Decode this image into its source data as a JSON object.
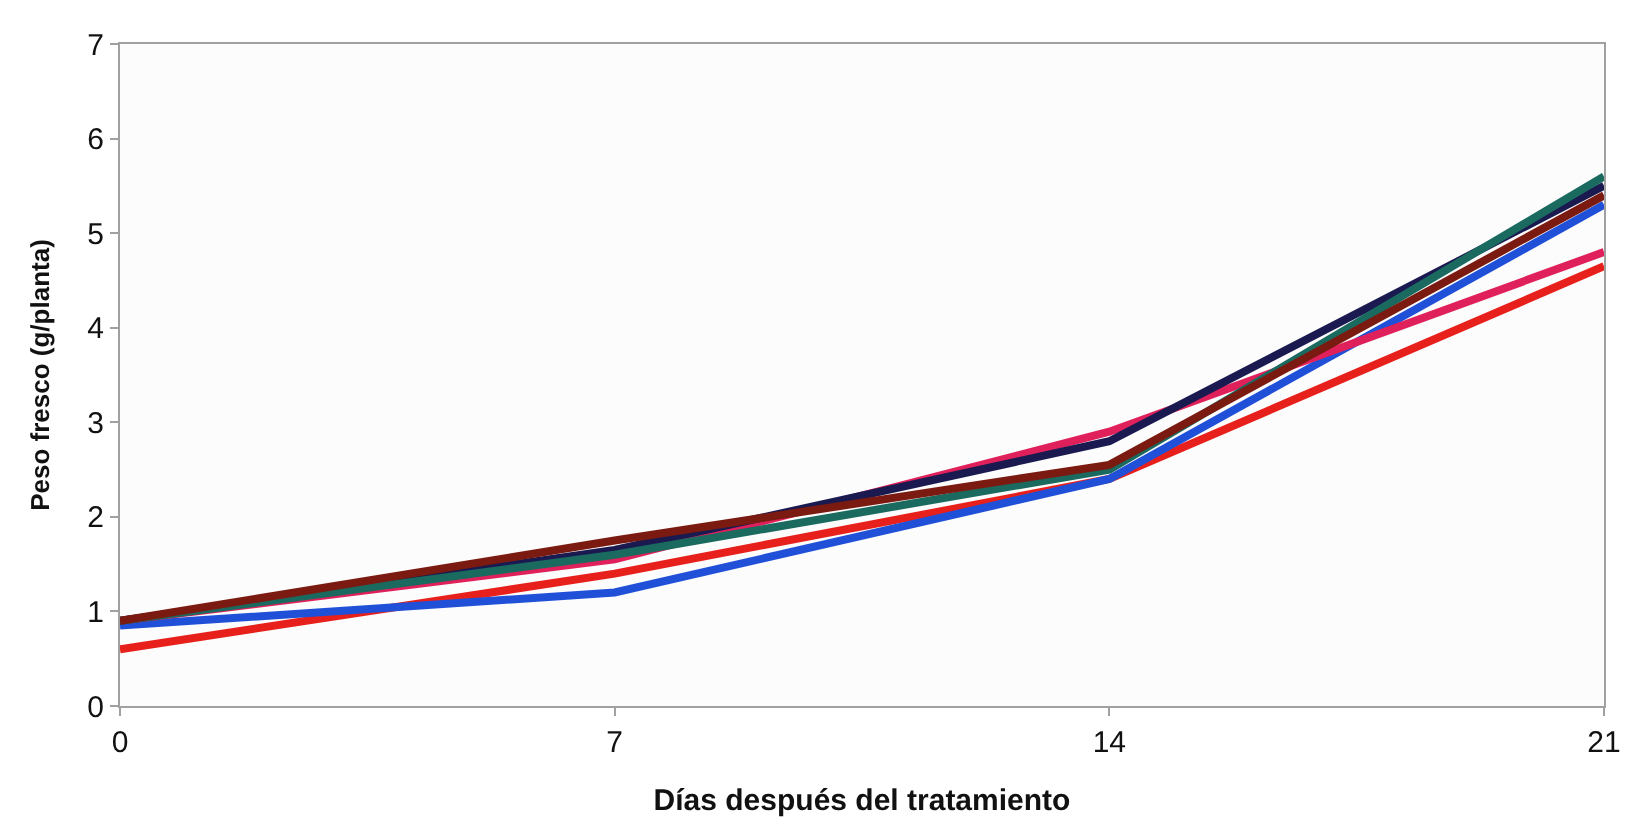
{
  "chart_data": {
    "type": "line",
    "xlabel": "Días después del tratamiento",
    "ylabel": "Peso fresco (g/planta)",
    "x": [
      0,
      7,
      14,
      21
    ],
    "series": [
      {
        "color": "#e8201c",
        "values": [
          0.6,
          1.4,
          2.4,
          4.65
        ]
      },
      {
        "color": "#2050d8",
        "values": [
          0.85,
          1.2,
          2.4,
          5.3
        ]
      },
      {
        "color": "#e0205a",
        "values": [
          0.9,
          1.55,
          2.9,
          4.8
        ]
      },
      {
        "color": "#1a1a50",
        "values": [
          0.9,
          1.65,
          2.8,
          5.5
        ]
      },
      {
        "color": "#1a6a60",
        "values": [
          0.9,
          1.6,
          2.5,
          5.6
        ]
      },
      {
        "color": "#7a1a10",
        "values": [
          0.9,
          1.75,
          2.55,
          5.4
        ]
      }
    ],
    "xlim": [
      0,
      21
    ],
    "xticks": [
      0,
      7,
      14,
      21
    ],
    "ylim": [
      0,
      7
    ],
    "yticks": [
      0,
      1,
      2,
      3,
      4,
      5,
      6,
      7
    ],
    "marker": "none",
    "line_style": "solid"
  }
}
